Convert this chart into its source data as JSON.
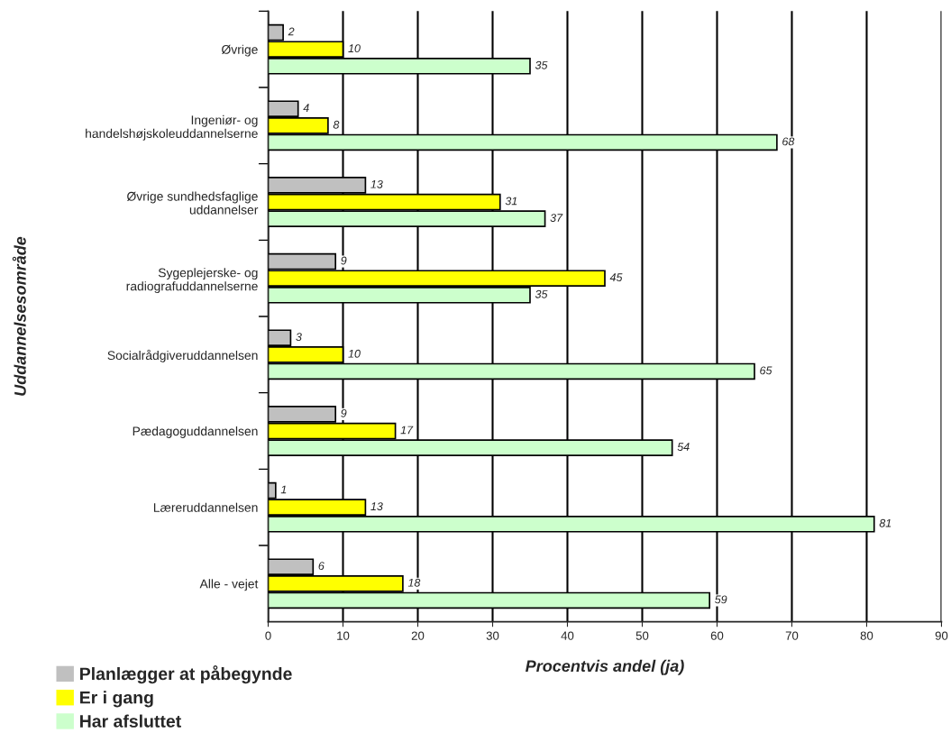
{
  "chart_data": {
    "type": "bar",
    "orientation": "horizontal",
    "ylabel": "Uddannelsesområde",
    "xlabel": "Procentvis andel (ja)",
    "categories": [
      "Øvrige",
      "Ingeniør- og\nhandelshøjskoleuddannelserne",
      "Øvrige sundhedsfaglige\nuddannelser",
      "Sygeplejerske- og\nradiografuddannelserne",
      "Socialrådgiveruddannelsen",
      "Pædagoguddannelsen",
      "Læreruddannelsen",
      "Alle - vejet"
    ],
    "series": [
      {
        "name": "Planlægger at påbegynde",
        "color": "#c0c0c0",
        "values": [
          2,
          4,
          13,
          9,
          3,
          9,
          1,
          6
        ]
      },
      {
        "name": "Er i gang",
        "color": "#ffff00",
        "values": [
          10,
          8,
          31,
          45,
          10,
          17,
          13,
          18
        ]
      },
      {
        "name": "Har afsluttet",
        "color": "#ccffcc",
        "values": [
          35,
          68,
          37,
          35,
          65,
          54,
          81,
          59
        ]
      }
    ],
    "xlim": [
      0,
      90
    ],
    "xticks": [
      0,
      10,
      20,
      30,
      40,
      50,
      60,
      70,
      80,
      90
    ],
    "grid": "x",
    "legend": "bottom left",
    "data_labels": true
  }
}
